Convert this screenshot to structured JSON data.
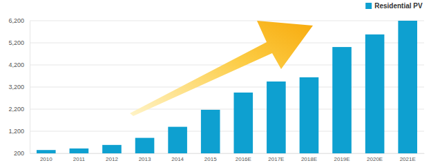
{
  "chart_data": {
    "type": "bar",
    "categories": [
      "2010",
      "2011",
      "2012",
      "2013",
      "2014",
      "2015",
      "2016E",
      "2017E",
      "2018E",
      "2019E",
      "2020E",
      "2021E"
    ],
    "series": [
      {
        "name": "Residential PV",
        "color": "#0ea0d0",
        "values": [
          350,
          420,
          580,
          900,
          1400,
          2170,
          2950,
          3450,
          3640,
          5010,
          5580,
          6200
        ]
      }
    ],
    "ylim": [
      200,
      6200
    ],
    "yticks": [
      200,
      {
        "value": 1200,
        "label": "1,200"
      },
      {
        "value": 2200,
        "label": "2,200"
      },
      {
        "value": 3200,
        "label": "3,200"
      },
      {
        "value": 4200,
        "label": "4,200"
      },
      {
        "value": 5200,
        "label": "5,200"
      },
      {
        "value": 6200,
        "label": "6,200"
      }
    ],
    "grid": true,
    "legend": "upper right"
  }
}
